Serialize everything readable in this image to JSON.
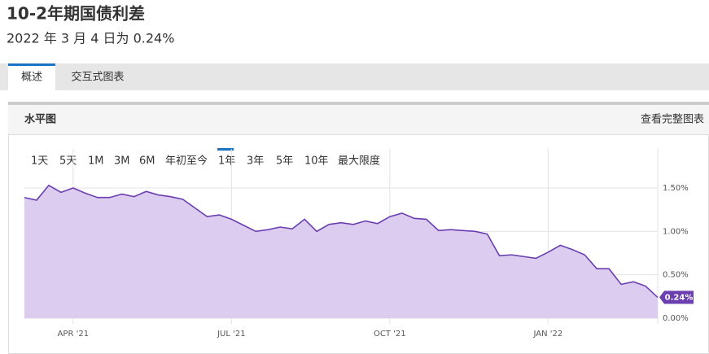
{
  "header": {
    "title": "10-2年期国债利差",
    "subtitle": "2022 年 3 月 4 日为 0.24%"
  },
  "tabs": [
    "概述",
    "交互式图表"
  ],
  "panel": {
    "title": "水平图",
    "link": "查看完整图表"
  },
  "range_buttons": [
    "1天",
    "5天",
    "1M",
    "3M",
    "6M",
    "年初至今",
    "1年",
    "3年",
    "5年",
    "10年",
    "最大限度"
  ],
  "chart_data": {
    "type": "area",
    "categories": [
      null,
      null,
      null,
      null,
      "APR '21",
      null,
      null,
      null,
      null,
      null,
      null,
      null,
      null,
      null,
      null,
      null,
      null,
      "JUL '21",
      null,
      null,
      null,
      null,
      null,
      null,
      null,
      null,
      null,
      null,
      null,
      null,
      "OCT '21",
      null,
      null,
      null,
      null,
      null,
      null,
      null,
      null,
      null,
      null,
      null,
      null,
      "JAN '22",
      null,
      null,
      null,
      null,
      null,
      null,
      null,
      null,
      null
    ],
    "series": [
      {
        "color": "#6b3fb0",
        "fill": "#dccdf0",
        "values": [
          1.39,
          1.36,
          1.53,
          1.45,
          1.5,
          1.44,
          1.39,
          1.39,
          1.43,
          1.4,
          1.46,
          1.42,
          1.4,
          1.37,
          1.27,
          1.17,
          1.19,
          1.14,
          1.07,
          1.0,
          1.02,
          1.05,
          1.03,
          1.14,
          1.0,
          1.08,
          1.1,
          1.08,
          1.12,
          1.09,
          1.17,
          1.21,
          1.15,
          1.14,
          1.01,
          1.02,
          1.01,
          1.0,
          0.97,
          0.72,
          0.73,
          0.71,
          0.69,
          0.76,
          0.84,
          0.79,
          0.73,
          0.57,
          0.57,
          0.39,
          0.42,
          0.37,
          0.24
        ],
        "value_labels": [
          null,
          null,
          null,
          null,
          null,
          null,
          null,
          null,
          null,
          null,
          null,
          null,
          null,
          null,
          null,
          null,
          null,
          null,
          null,
          null,
          null,
          null,
          null,
          null,
          null,
          null,
          null,
          null,
          null,
          null,
          null,
          null,
          null,
          null,
          null,
          null,
          null,
          null,
          null,
          null,
          null,
          null,
          null,
          null,
          null,
          null,
          null,
          null,
          null,
          null,
          null,
          null,
          "0.24%"
        ]
      }
    ],
    "ylim": [
      0,
      1.95
    ],
    "yticks": [
      {
        "value": 0,
        "label": "0.00%"
      },
      {
        "value": 0.5,
        "label": "0.50%"
      },
      {
        "value": 1,
        "label": "1.00%"
      },
      {
        "value": 1.5,
        "label": "1.50%"
      }
    ],
    "grid": true
  }
}
